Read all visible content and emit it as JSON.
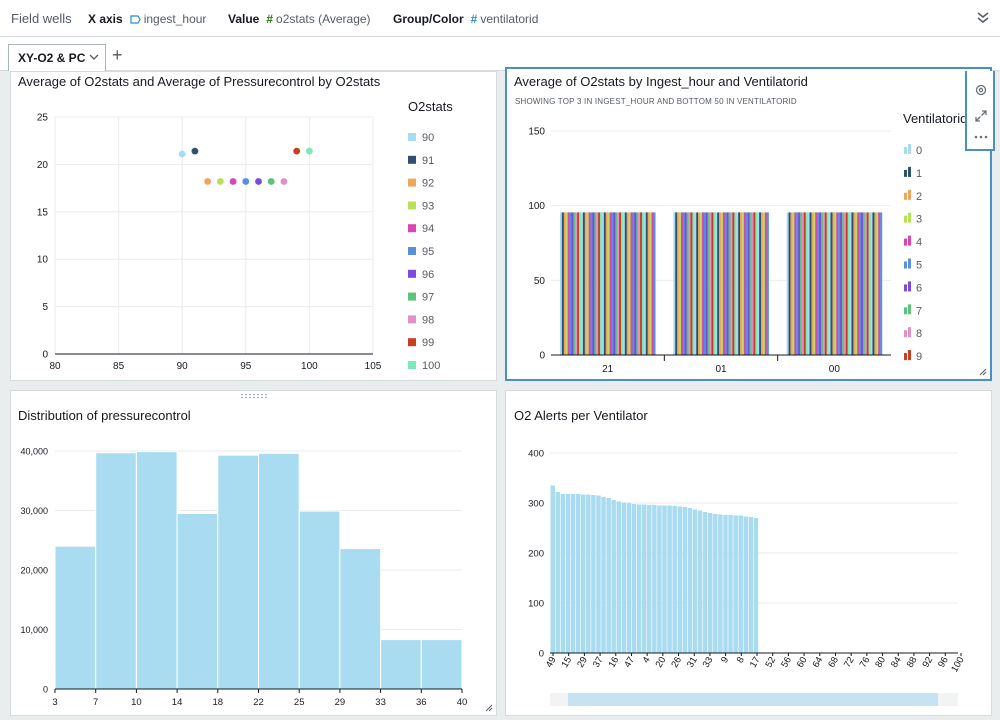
{
  "field_wells": {
    "title": "Field wells",
    "x_axis_label": "X axis",
    "x_axis_value": "ingest_hour",
    "value_label": "Value",
    "value_value": "o2stats (Average)",
    "group_label": "Group/Color",
    "group_value": "ventilatorid"
  },
  "tabs": {
    "active": "XY-O2 & PC",
    "add": "+"
  },
  "colors": {
    "palette": [
      "#a6dcef",
      "#2f4f6f",
      "#f0a55d",
      "#b8e05a",
      "#d946b0",
      "#5a8fdc",
      "#7b4ae0",
      "#5cc47a",
      "#e390c8",
      "#c83e1e",
      "#7de8b8"
    ],
    "hist_fill": "#a9dcf0",
    "selected_border": "#4a90c4"
  },
  "scatter": {
    "title": "Average of O2stats and Average of Pressurecontrol by O2stats",
    "legend_title": "O2stats",
    "chart_data": {
      "type": "scatter",
      "x_ticks": [
        "80",
        "85",
        "90",
        "95",
        "100",
        "105"
      ],
      "y_ticks": [
        "0",
        "5",
        "10",
        "15",
        "20",
        "25"
      ],
      "xlim": [
        80,
        105
      ],
      "ylim": [
        0,
        25
      ],
      "points": [
        {
          "name": "90",
          "x": 90,
          "y": 21.1
        },
        {
          "name": "91",
          "x": 91,
          "y": 21.4
        },
        {
          "name": "92",
          "x": 92,
          "y": 18.2
        },
        {
          "name": "93",
          "x": 93,
          "y": 18.2
        },
        {
          "name": "94",
          "x": 94,
          "y": 18.2
        },
        {
          "name": "95",
          "x": 95,
          "y": 18.2
        },
        {
          "name": "96",
          "x": 96,
          "y": 18.2
        },
        {
          "name": "97",
          "x": 97,
          "y": 18.2
        },
        {
          "name": "98",
          "x": 98,
          "y": 18.2
        },
        {
          "name": "99",
          "x": 99,
          "y": 21.4
        },
        {
          "name": "100",
          "x": 100,
          "y": 21.4
        }
      ]
    }
  },
  "grouped": {
    "title": "Average of O2stats by Ingest_hour and Ventilatorid",
    "subtitle": "SHOWING TOP 3 IN INGEST_HOUR AND BOTTOM 50 IN VENTILATORID",
    "legend_title": "Ventilatorid",
    "legend_items": [
      "0",
      "1",
      "2",
      "3",
      "4",
      "5",
      "6",
      "7",
      "8",
      "9"
    ],
    "chart_data": {
      "type": "bar",
      "categories": [
        "21",
        "01",
        "00"
      ],
      "y_ticks": [
        "0",
        "50",
        "100",
        "150"
      ],
      "ylim": [
        0,
        150
      ],
      "bars_per_group": 50,
      "value": 95.5
    }
  },
  "histogram": {
    "title": "Distribution of pressurecontrol",
    "chart_data": {
      "type": "bar",
      "x_ticks": [
        "3",
        "7",
        "10",
        "14",
        "18",
        "22",
        "25",
        "29",
        "33",
        "36",
        "40"
      ],
      "y_ticks": [
        "0",
        "10,000",
        "20,000",
        "30,000",
        "40,000"
      ],
      "ylim": [
        0,
        40000
      ],
      "values": [
        24000,
        39700,
        39900,
        29500,
        39300,
        39600,
        29900,
        23600,
        8300,
        8300
      ]
    }
  },
  "alerts": {
    "title": "O2 Alerts per Ventilator",
    "chart_data": {
      "type": "bar",
      "x_ticks": [
        "49",
        "15",
        "29",
        "37",
        "16",
        "47",
        "4",
        "20",
        "26",
        "31",
        "33",
        "9",
        "8",
        "17",
        "52",
        "56",
        "60",
        "64",
        "68",
        "72",
        "76",
        "80",
        "84",
        "88",
        "92",
        "96",
        "100"
      ],
      "y_ticks": [
        "0",
        "100",
        "200",
        "300",
        "400"
      ],
      "ylim": [
        0,
        400
      ],
      "values": [
        335,
        322,
        318,
        318,
        318,
        318,
        317,
        317,
        316,
        315,
        312,
        310,
        306,
        303,
        301,
        300,
        298,
        297,
        297,
        296,
        296,
        295,
        295,
        295,
        294,
        293,
        292,
        290,
        287,
        285,
        282,
        280,
        278,
        277,
        276,
        276,
        275,
        275,
        273,
        272,
        270
      ]
    }
  }
}
